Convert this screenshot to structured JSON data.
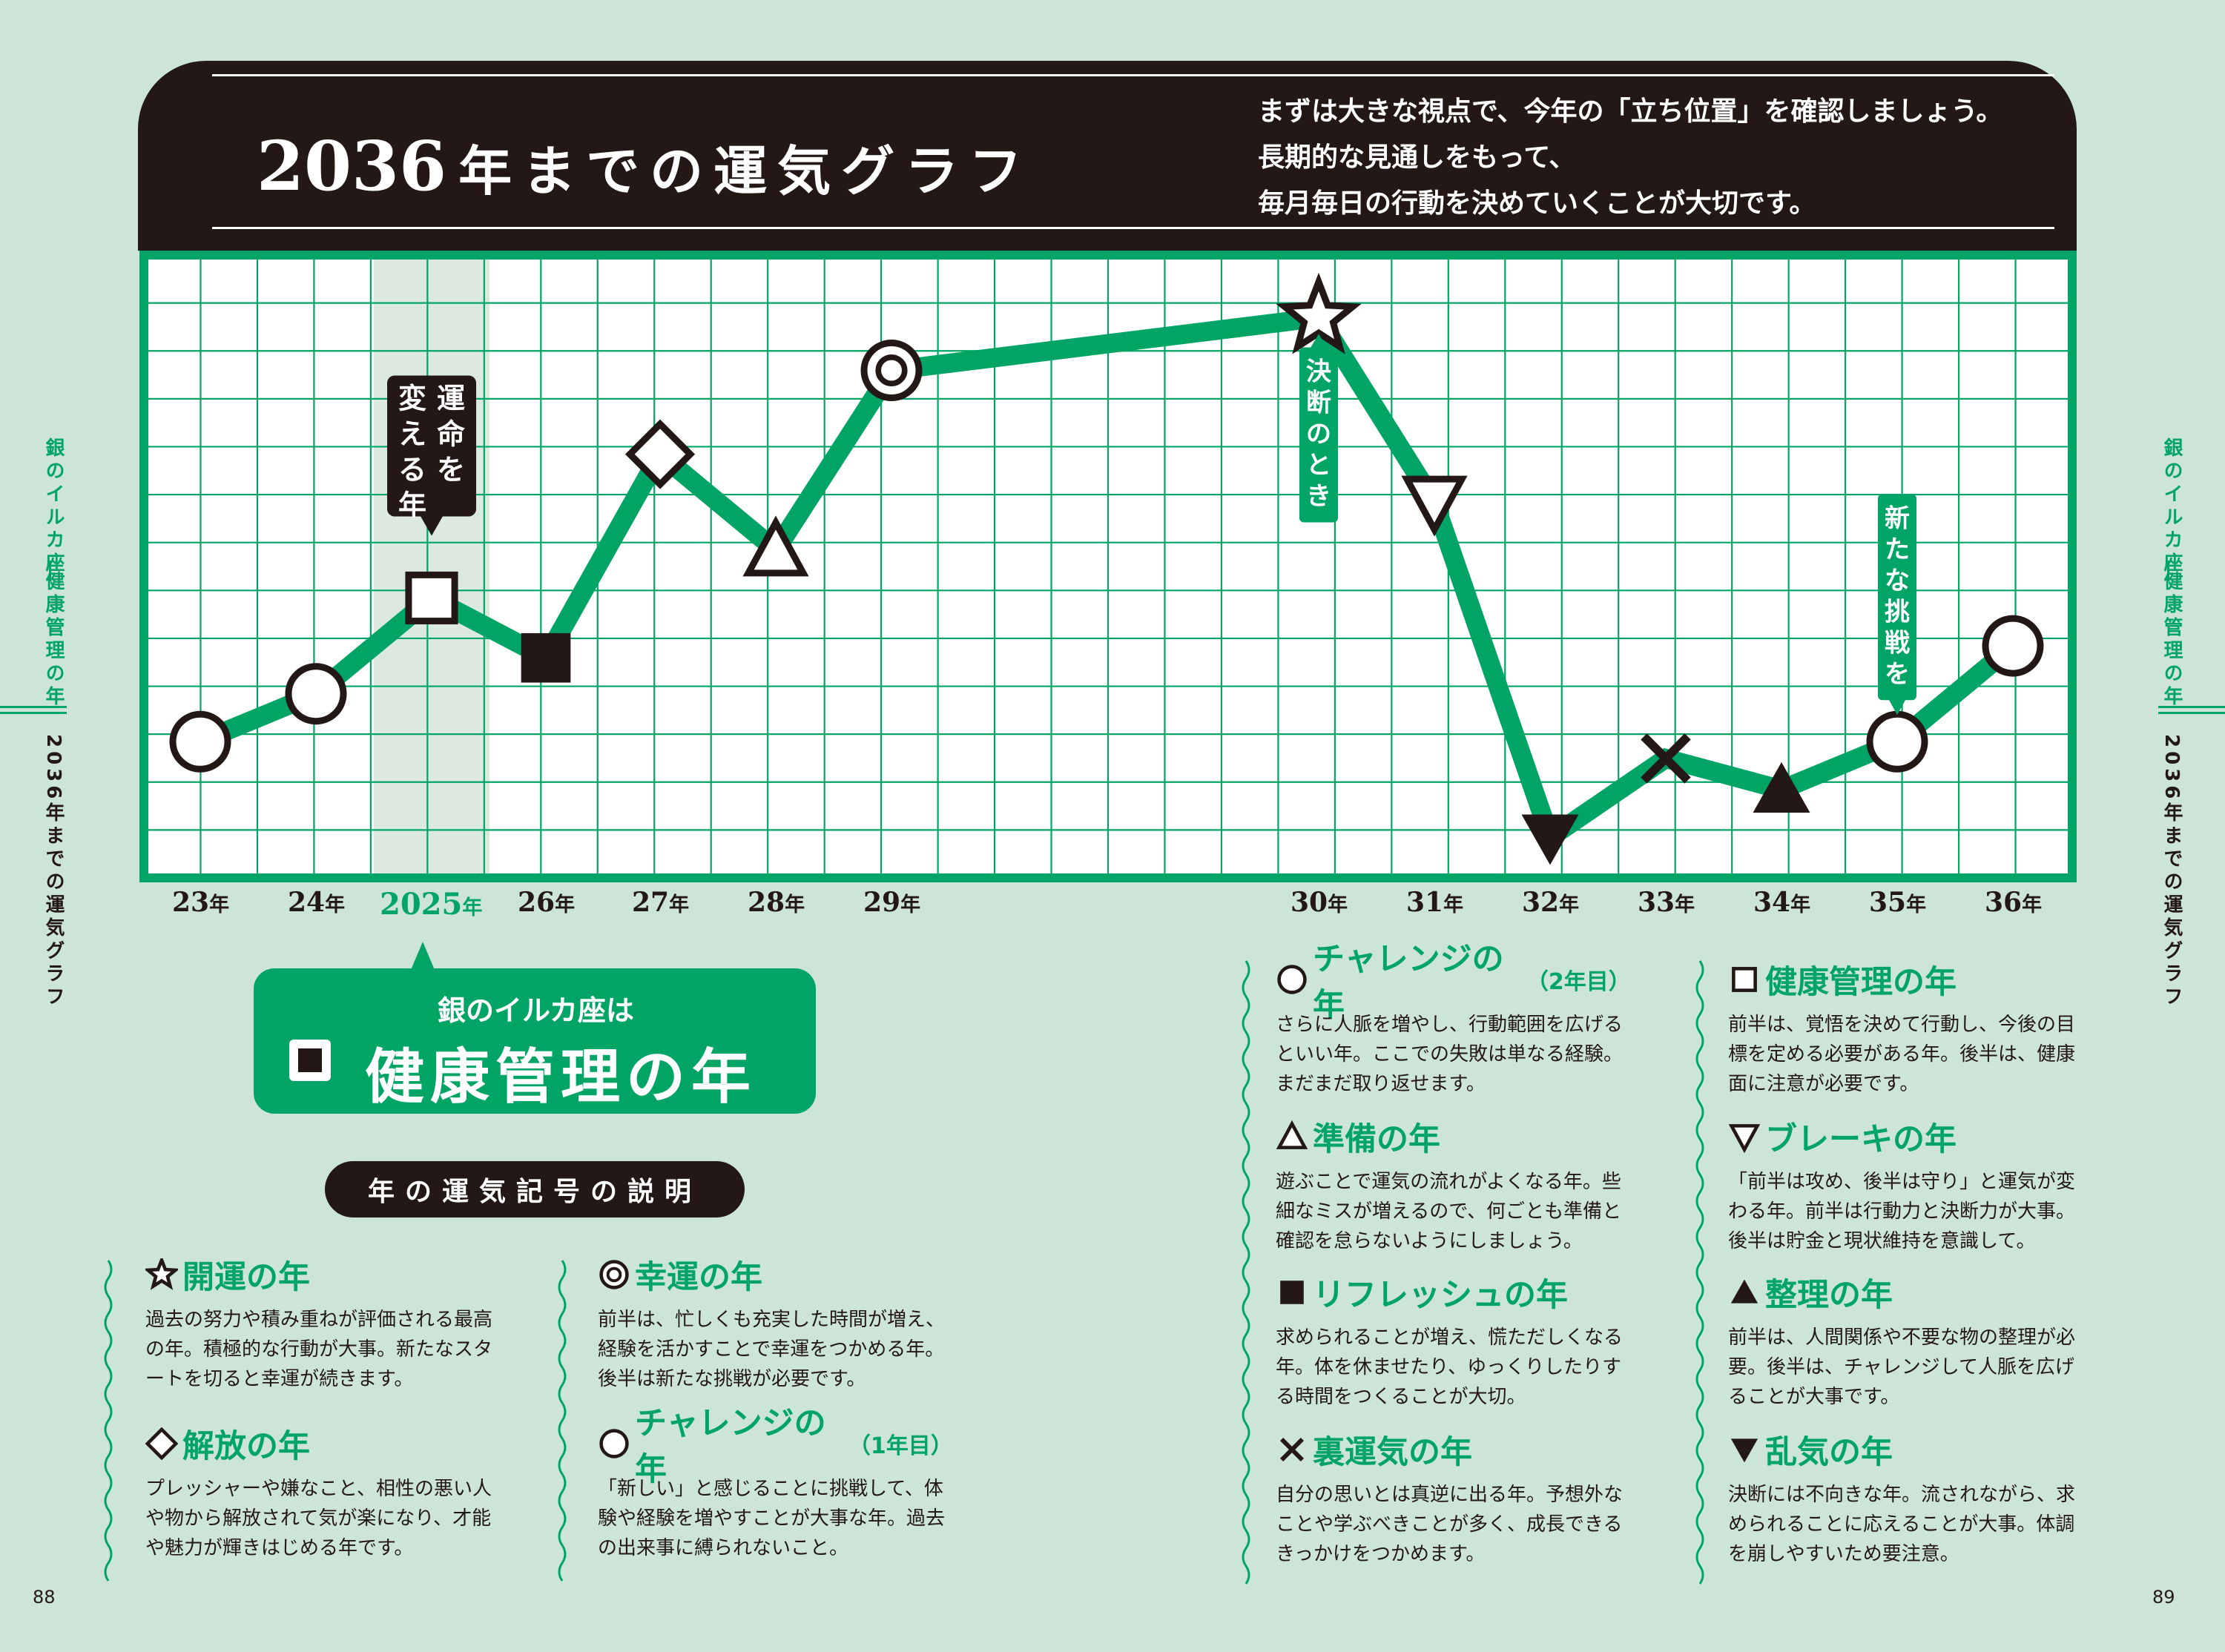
{
  "header": {
    "title_year": "2036",
    "title_rest": "年までの運気グラフ",
    "intro": "まずは大きな視点で、今年の「立ち位置」を確認しましょう。\n長期的な見通しをもって、\n毎月毎日の行動を決めていくことが大切です。"
  },
  "colors": {
    "accent": "#00a565",
    "dark": "#231815",
    "background": "#cde5d7",
    "highlight": "#dbe9df"
  },
  "chart_data": {
    "type": "line",
    "x_labels": [
      "23",
      "24",
      "2025",
      "26",
      "27",
      "28",
      "29",
      "30",
      "31",
      "32",
      "33",
      "34",
      "35",
      "36"
    ],
    "x_unit": "年",
    "highlight_year": "2025",
    "grid": true,
    "points": [
      {
        "year": "23",
        "symbol": "circle",
        "level": 2.75
      },
      {
        "year": "24",
        "symbol": "circle",
        "level": 3.75
      },
      {
        "year": "2025",
        "symbol": "square",
        "level": 5.75
      },
      {
        "year": "26",
        "symbol": "filled-square",
        "level": 4.5
      },
      {
        "year": "27",
        "symbol": "diamond",
        "level": 8.75
      },
      {
        "year": "28",
        "symbol": "triangle",
        "level": 6.75
      },
      {
        "year": "29",
        "symbol": "double-circle",
        "level": 10.5
      },
      {
        "year": "30",
        "symbol": "star",
        "level": 11.6
      },
      {
        "year": "31",
        "symbol": "inverted-triangle",
        "level": 7.75
      },
      {
        "year": "32",
        "symbol": "filled-inverted-triangle",
        "level": 0.75
      },
      {
        "year": "33",
        "symbol": "cross",
        "level": 2.4
      },
      {
        "year": "34",
        "symbol": "filled-triangle",
        "level": 1.75
      },
      {
        "year": "35",
        "symbol": "circle",
        "level": 2.75
      },
      {
        "year": "36",
        "symbol": "circle",
        "level": 4.75
      }
    ],
    "annotations": [
      {
        "year": "2025",
        "text": "運命を変える年"
      },
      {
        "year": "30",
        "text": "決断のとき"
      },
      {
        "year": "35",
        "text": "新たな挑戦を"
      }
    ]
  },
  "side_labels": {
    "left_top": "銀のイルカ座",
    "left_mid": "健康管理の年",
    "left_bottom": "2036年までの運気グラフ",
    "right_top": "銀のイルカ座",
    "right_mid": "健康管理の年",
    "right_bottom": "2036年までの運気グラフ"
  },
  "current_year": {
    "subtitle": "銀のイルカ座は",
    "main": "健康管理の年"
  },
  "legend": {
    "heading": "年の運気記号の説明",
    "entries": [
      {
        "symbol": "star",
        "title": "開運の年",
        "note": "",
        "desc": "過去の努力や積み重ねが評価される最高の年。積極的な行動が大事。新たなスタートを切ると幸運が続きます。"
      },
      {
        "symbol": "diamond",
        "title": "解放の年",
        "note": "",
        "desc": "プレッシャーや嫌なこと、相性の悪い人や物から解放されて気が楽になり、才能や魅力が輝きはじめる年です。"
      },
      {
        "symbol": "double-circle",
        "title": "幸運の年",
        "note": "",
        "desc": "前半は、忙しくも充実した時間が増え、経験を活かすことで幸運をつかめる年。後半は新たな挑戦が必要です。"
      },
      {
        "symbol": "circle",
        "title": "チャレンジの年",
        "note": "（1年目）",
        "desc": "「新しい」と感じることに挑戦して、体験や経験を増やすことが大事な年。過去の出来事に縛られないこと。"
      },
      {
        "symbol": "circle",
        "title": "チャレンジの年",
        "note": "（2年目）",
        "desc": "さらに人脈を増やし、行動範囲を広げるといい年。ここでの失敗は単なる経験。まだまだ取り返せます。"
      },
      {
        "symbol": "triangle",
        "title": "準備の年",
        "note": "",
        "desc": "遊ぶことで運気の流れがよくなる年。些細なミスが増えるので、何ごとも準備と確認を怠らないようにしましょう。"
      },
      {
        "symbol": "filled-square",
        "title": "リフレッシュの年",
        "note": "",
        "desc": "求められることが増え、慌ただしくなる年。体を休ませたり、ゆっくりしたりする時間をつくることが大切。"
      },
      {
        "symbol": "cross",
        "title": "裏運気の年",
        "note": "",
        "desc": "自分の思いとは真逆に出る年。予想外なことや学ぶべきことが多く、成長できるきっかけをつかめます。"
      },
      {
        "symbol": "square",
        "title": "健康管理の年",
        "note": "",
        "desc": "前半は、覚悟を決めて行動し、今後の目標を定める必要がある年。後半は、健康面に注意が必要です。"
      },
      {
        "symbol": "inverted-triangle",
        "title": "ブレーキの年",
        "note": "",
        "desc": "「前半は攻め、後半は守り」と運気が変わる年。前半は行動力と決断力が大事。後半は貯金と現状維持を意識して。"
      },
      {
        "symbol": "filled-triangle",
        "title": "整理の年",
        "note": "",
        "desc": "前半は、人間関係や不要な物の整理が必要。後半は、チャレンジして人脈を広げることが大事です。"
      },
      {
        "symbol": "filled-inverted-triangle",
        "title": "乱気の年",
        "note": "",
        "desc": "決断には不向きな年。流されながら、求められることに応えることが大事。体調を崩しやすいため要注意。"
      }
    ]
  },
  "page_numbers": {
    "left": "88",
    "right": "89"
  }
}
